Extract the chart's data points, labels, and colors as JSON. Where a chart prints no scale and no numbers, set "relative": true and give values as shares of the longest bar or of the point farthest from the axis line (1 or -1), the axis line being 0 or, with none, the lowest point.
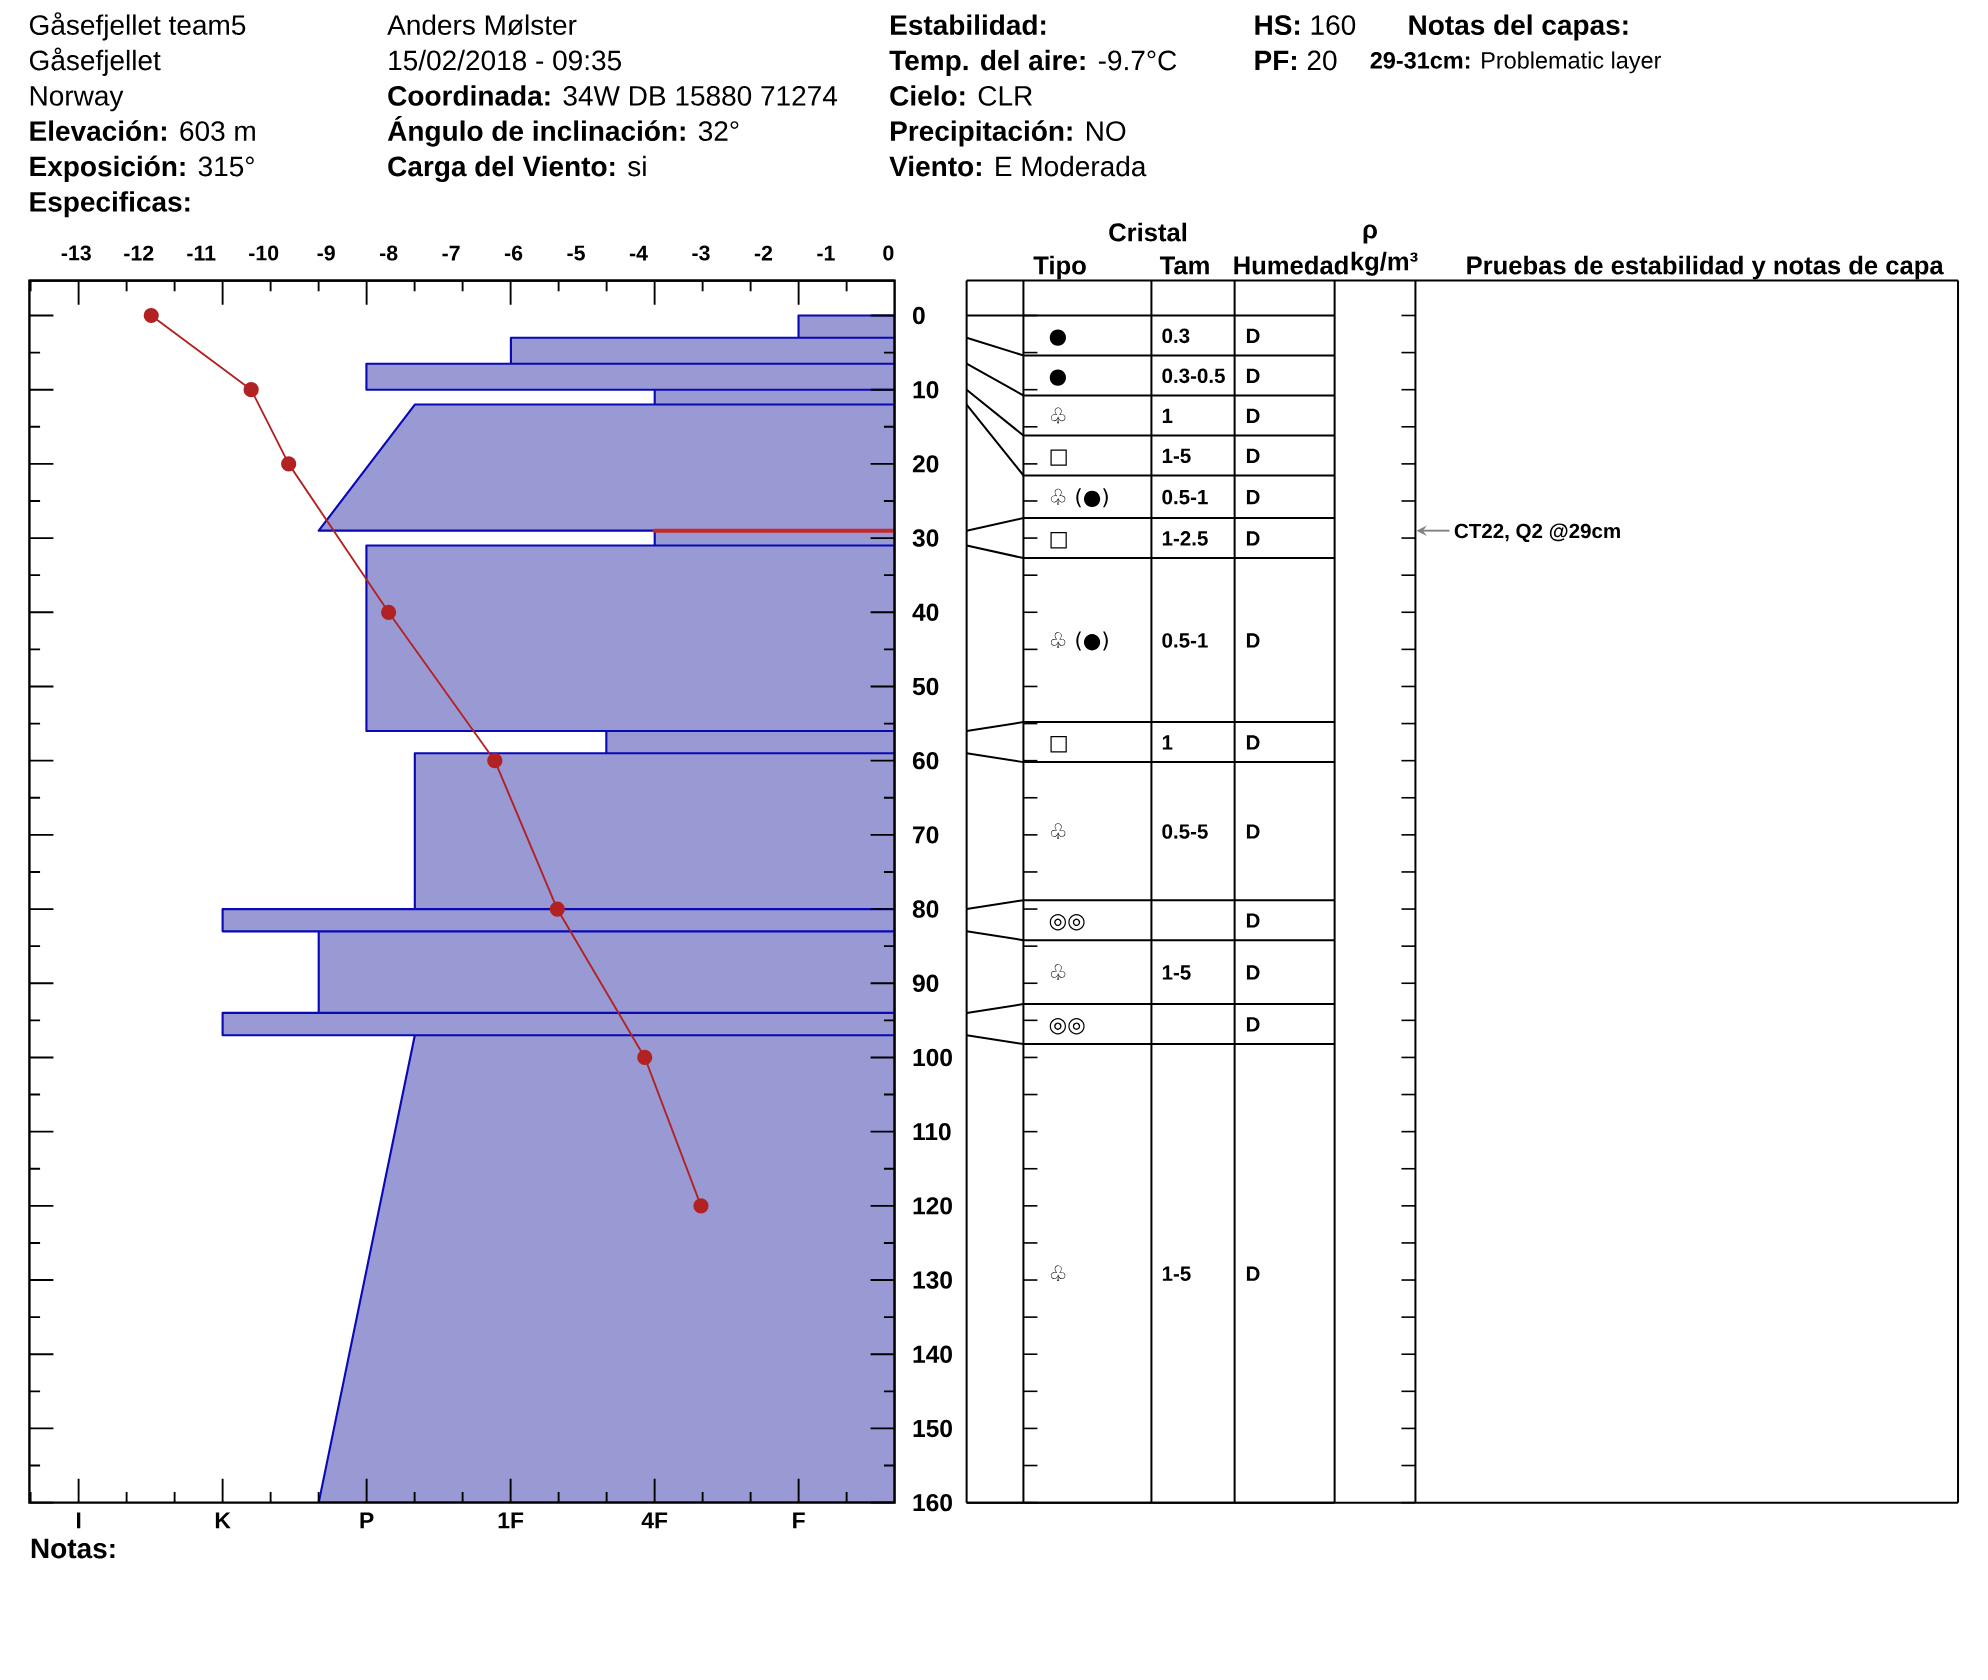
{
  "chart_data": [
    {
      "type": "area",
      "orientation": "horizontal",
      "relative": true,
      "tick_labels": "y",
      "ylim": [
        160,
        -4.7
      ],
      "yticks": [
        0,
        {
          "value": 5,
          "label": null
        },
        10,
        {
          "value": 15,
          "label": null
        },
        20,
        {
          "value": 25,
          "label": null
        },
        30,
        {
          "value": 35,
          "label": null
        },
        40,
        {
          "value": 45,
          "label": null
        },
        50,
        {
          "value": 55,
          "label": null
        },
        60,
        {
          "value": 65,
          "label": null
        },
        70,
        {
          "value": 75,
          "label": null
        },
        80,
        {
          "value": 85,
          "label": null
        },
        90,
        {
          "value": 95,
          "label": null
        },
        100,
        {
          "value": 105,
          "label": null
        },
        110,
        {
          "value": 115,
          "label": null
        },
        120,
        {
          "value": 125,
          "label": null
        },
        130,
        {
          "value": 135,
          "label": null
        },
        140,
        {
          "value": 145,
          "label": null
        },
        150,
        {
          "value": 155,
          "label": null
        },
        160
      ],
      "series": [
        {
          "color": "#9999d4",
          "x": [
            0,
            0,
            3,
            3,
            3,
            6.5,
            6.5,
            6.5,
            10,
            10,
            10,
            12,
            12,
            12,
            29,
            29,
            29,
            31,
            31,
            31,
            56,
            56,
            56,
            59,
            59,
            59,
            80,
            80,
            80,
            83,
            83,
            83,
            94,
            94,
            94,
            97,
            97,
            97,
            160,
            160
          ],
          "values": [
            0,
            -0.143,
            -0.143,
            0,
            -0.571,
            -0.571,
            0,
            -0.786,
            -0.786,
            0,
            -0.357,
            -0.357,
            0,
            -0.714,
            -0.857,
            0,
            -0.357,
            -0.357,
            0,
            -0.786,
            -0.786,
            0,
            -0.429,
            -0.429,
            0,
            -0.714,
            -0.714,
            0,
            -1,
            -1,
            0,
            -0.857,
            -0.857,
            0,
            -1,
            -1,
            0,
            -0.714,
            -0.857,
            0
          ]
        },
        {
          "type": "line",
          "color": "#c62828",
          "x": [
            29,
            29
          ],
          "values": [
            -0.357,
            0
          ]
        }
      ],
      "annotations": [
        "Gåsefjellet team5",
        "Gåsefjellet",
        "Norway",
        "**Elevación:** 603 m",
        "**Exposición:** 315°",
        "Especificas:",
        "Anders Mølster",
        "15/02/2018 - 09:35",
        "**Coordinada:** 34W DB 15880 71274",
        "**Ángulo de inclinación:** 32°",
        "**Carga del Viento:** si",
        "Estabilidad:",
        "**Temp. del aire:** -9.7°C",
        "**Cielo:** CLR",
        "**Precipitación:** NO",
        "**Viento:** E Moderada",
        "**HS:** 160",
        "**PF:** 20",
        "Notas del capas:",
        "**29-31cm:** Problematic layer",
        "Notas:",
        "I",
        "K",
        "P",
        "1F",
        "4F",
        "F",
        "Cristal",
        "Tipo",
        "Tam",
        "Humedad",
        "ρ",
        "kg/m³",
        "Pruebas de estabilidad y notas de capa",
        "CT22, Q2 @29cm",
        "●",
        "0.3",
        "D",
        "●",
        "0.3-0.5",
        "D",
        "♧",
        "1",
        "D",
        "□",
        "1-5",
        "D",
        "♧ (●)",
        "0.5-1",
        "D",
        "□",
        "1-2.5",
        "D",
        "♧ (●)",
        "0.5-1",
        "D",
        "□",
        "1",
        "D",
        "♧",
        "0.5-5",
        "D",
        "◎◎",
        null,
        "D",
        "♧",
        "1-5",
        "D",
        "◎◎",
        null,
        "D",
        "♧",
        "1-5",
        "D"
      ]
    },
    {
      "type": "line",
      "tick_labels": "x",
      "xlim": [
        -13.75,
        0.1
      ],
      "xticks": [
        -13,
        -12,
        -11,
        -10,
        -9,
        -8,
        -7,
        -6,
        -5,
        -4,
        -3,
        -2,
        -1,
        0
      ],
      "ylim": [
        160,
        -4.7
      ],
      "series": [
        {
          "color": "#b22222",
          "marker": "circle",
          "x": [
            -11.8,
            -10.2,
            -9.6,
            -8.0,
            -6.3,
            -5.3,
            -3.9,
            -3.0
          ],
          "values": [
            0,
            10,
            20,
            40,
            60,
            80,
            100,
            120
          ]
        }
      ]
    }
  ]
}
